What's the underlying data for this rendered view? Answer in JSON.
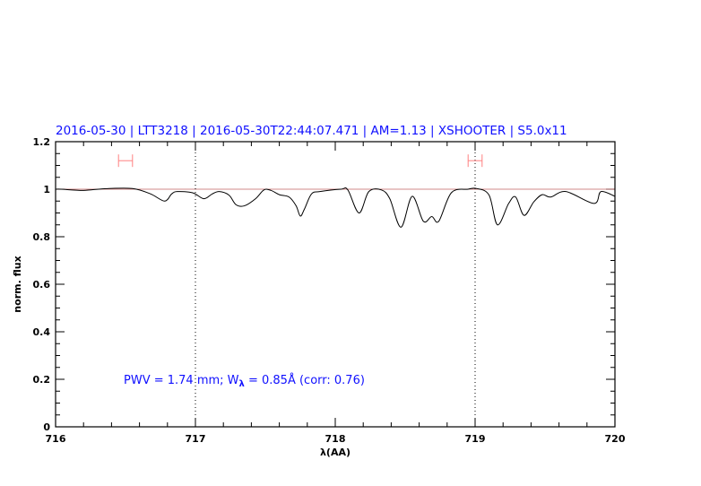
{
  "chart_data": {
    "type": "line",
    "title": "2016-05-30  | LTT3218 | 2016-05-30T22:44:07.471 | AM=1.13 | XSHOOTER | S5.0x11",
    "xlabel": "λ(AA)",
    "ylabel": "norm. flux",
    "xlim": [
      716,
      720
    ],
    "ylim": [
      0,
      1.2
    ],
    "xticks": [
      "716",
      "717",
      "718",
      "719",
      "720"
    ],
    "yticks": [
      "0",
      "0.2",
      "0.4",
      "0.6",
      "0.8",
      "1",
      "1.2"
    ],
    "grid": false,
    "reference_line": 1.0,
    "vertical_markers": [
      717,
      719
    ],
    "intervals": [
      {
        "x": [
          716.45,
          716.55
        ],
        "y": 1.12
      },
      {
        "x": [
          718.95,
          719.05
        ],
        "y": 1.12
      }
    ],
    "annotation": {
      "pre": "PWV  =  1.74  mm;  W",
      "sub": "λ",
      "post": "  =  0.85Å  (corr:  0.76)"
    },
    "series": [
      {
        "x": [
          716.0,
          716.04,
          716.2,
          716.35,
          716.55,
          716.68,
          716.78,
          716.83,
          716.87,
          716.98,
          717.06,
          717.12,
          717.17,
          717.24,
          717.29,
          717.35,
          717.43,
          717.49,
          717.54,
          717.6,
          717.67,
          717.72,
          717.75,
          717.78,
          717.83,
          717.89,
          718.04,
          718.09,
          718.17,
          718.24,
          718.33,
          718.39,
          718.47,
          718.55,
          718.63,
          718.69,
          718.74,
          718.83,
          718.95,
          719.01,
          719.1,
          719.16,
          719.24,
          719.29,
          719.35,
          719.42,
          719.48,
          719.54,
          719.65,
          719.85,
          719.9,
          720.0
        ],
        "y": [
          1.0,
          1.0,
          0.995,
          1.002,
          1.003,
          0.98,
          0.95,
          0.98,
          0.99,
          0.985,
          0.96,
          0.98,
          0.99,
          0.975,
          0.935,
          0.93,
          0.96,
          0.997,
          0.995,
          0.977,
          0.967,
          0.93,
          0.887,
          0.917,
          0.98,
          0.99,
          1.0,
          0.997,
          0.9,
          0.99,
          0.997,
          0.96,
          0.84,
          0.97,
          0.865,
          0.885,
          0.865,
          0.985,
          1.0,
          1.003,
          0.975,
          0.85,
          0.94,
          0.967,
          0.89,
          0.947,
          0.977,
          0.967,
          0.99,
          0.94,
          0.99,
          0.97
        ]
      }
    ],
    "colors": {
      "title": "#1010ff",
      "spectrum": "#000000",
      "reference": "#c06060",
      "interval": "#ff8080"
    }
  }
}
